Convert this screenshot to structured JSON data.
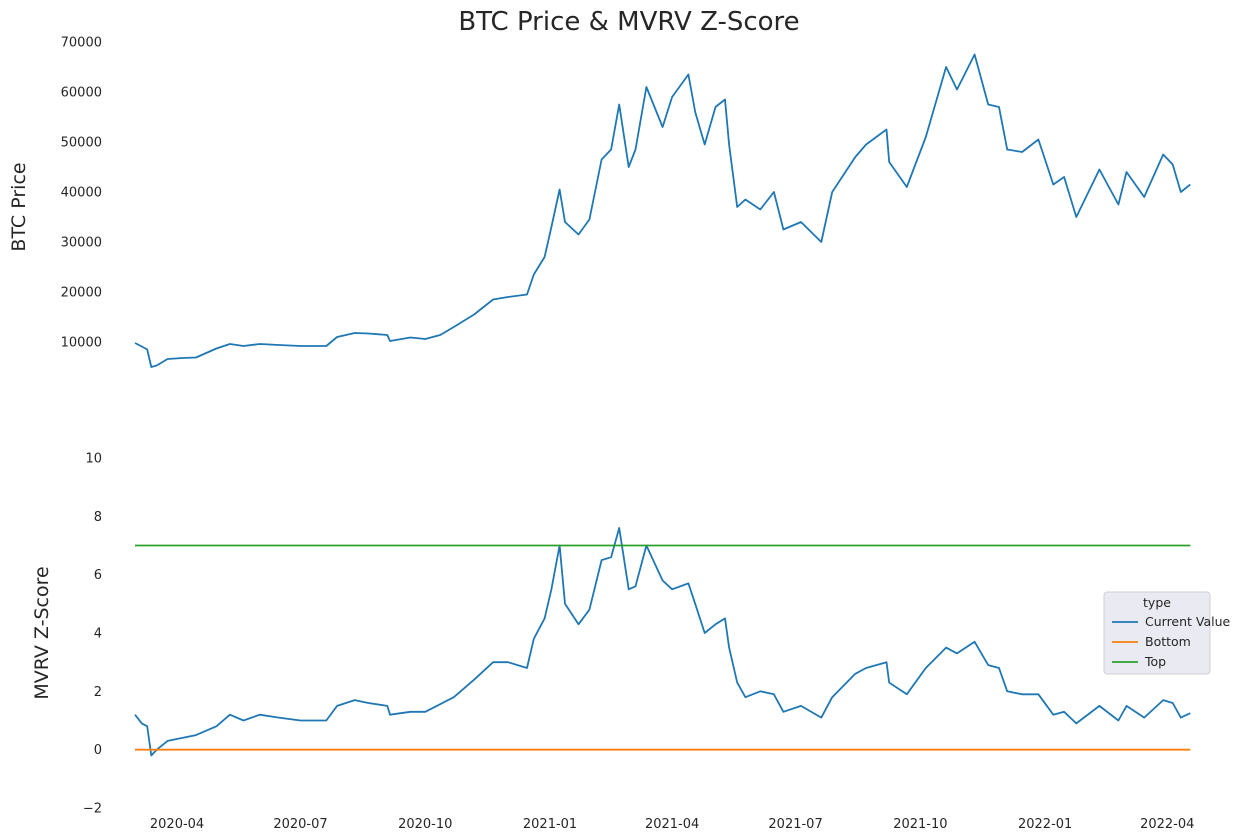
{
  "chart_data": [
    {
      "type": "line",
      "title": "BTC Price & MVRV Z-Score",
      "xlabel": "",
      "ylabel": "BTC  Price",
      "xlim": [
        "2020-03-01",
        "2022-04-20"
      ],
      "ylim": [
        4000,
        70000
      ],
      "yticks": [
        10000,
        20000,
        30000,
        40000,
        50000,
        60000,
        70000
      ],
      "xticks": [
        "2020-04",
        "2020-07",
        "2020-10",
        "2021-01",
        "2021-04",
        "2021-07",
        "2021-10",
        "2022-01",
        "2022-04"
      ],
      "grid": false,
      "series": [
        {
          "color": "#1f77b4",
          "points": [
            [
              "2020-03-01",
              9800
            ],
            [
              "2020-03-06",
              9100
            ],
            [
              "2020-03-10",
              8500
            ],
            [
              "2020-03-13",
              5000
            ],
            [
              "2020-03-17",
              5300
            ],
            [
              "2020-03-25",
              6600
            ],
            [
              "2020-04-05",
              6800
            ],
            [
              "2020-04-15",
              6900
            ],
            [
              "2020-04-30",
              8700
            ],
            [
              "2020-05-10",
              9600
            ],
            [
              "2020-05-20",
              9200
            ],
            [
              "2020-06-01",
              9600
            ],
            [
              "2020-06-15",
              9400
            ],
            [
              "2020-07-01",
              9200
            ],
            [
              "2020-07-20",
              9200
            ],
            [
              "2020-07-28",
              11000
            ],
            [
              "2020-08-10",
              11800
            ],
            [
              "2020-08-20",
              11700
            ],
            [
              "2020-09-03",
              11400
            ],
            [
              "2020-09-05",
              10200
            ],
            [
              "2020-09-20",
              10900
            ],
            [
              "2020-10-01",
              10600
            ],
            [
              "2020-10-12",
              11400
            ],
            [
              "2020-10-22",
              13000
            ],
            [
              "2020-11-06",
              15500
            ],
            [
              "2020-11-20",
              18500
            ],
            [
              "2020-12-01",
              19000
            ],
            [
              "2020-12-15",
              19500
            ],
            [
              "2020-12-20",
              23500
            ],
            [
              "2020-12-28",
              27000
            ],
            [
              "2021-01-02",
              33000
            ],
            [
              "2021-01-08",
              40500
            ],
            [
              "2021-01-12",
              34000
            ],
            [
              "2021-01-22",
              31500
            ],
            [
              "2021-01-30",
              34500
            ],
            [
              "2021-02-08",
              46500
            ],
            [
              "2021-02-15",
              48500
            ],
            [
              "2021-02-21",
              57500
            ],
            [
              "2021-02-28",
              45000
            ],
            [
              "2021-03-05",
              48500
            ],
            [
              "2021-03-13",
              61000
            ],
            [
              "2021-03-25",
              53000
            ],
            [
              "2021-04-01",
              59000
            ],
            [
              "2021-04-13",
              63500
            ],
            [
              "2021-04-18",
              56000
            ],
            [
              "2021-04-25",
              49500
            ],
            [
              "2021-05-03",
              57000
            ],
            [
              "2021-05-10",
              58500
            ],
            [
              "2021-05-13",
              49500
            ],
            [
              "2021-05-19",
              37000
            ],
            [
              "2021-05-25",
              38500
            ],
            [
              "2021-06-05",
              36500
            ],
            [
              "2021-06-15",
              40000
            ],
            [
              "2021-06-22",
              32500
            ],
            [
              "2021-07-05",
              34000
            ],
            [
              "2021-07-20",
              30000
            ],
            [
              "2021-07-28",
              40000
            ],
            [
              "2021-08-14",
              47000
            ],
            [
              "2021-08-22",
              49500
            ],
            [
              "2021-09-06",
              52500
            ],
            [
              "2021-09-08",
              46000
            ],
            [
              "2021-09-21",
              41000
            ],
            [
              "2021-10-05",
              51000
            ],
            [
              "2021-10-20",
              65000
            ],
            [
              "2021-10-28",
              60500
            ],
            [
              "2021-11-10",
              67500
            ],
            [
              "2021-11-20",
              57500
            ],
            [
              "2021-11-28",
              57000
            ],
            [
              "2021-12-04",
              48500
            ],
            [
              "2021-12-15",
              48000
            ],
            [
              "2021-12-27",
              50500
            ],
            [
              "2022-01-07",
              41500
            ],
            [
              "2022-01-15",
              43000
            ],
            [
              "2022-01-24",
              35000
            ],
            [
              "2022-02-10",
              44500
            ],
            [
              "2022-02-24",
              37500
            ],
            [
              "2022-03-02",
              44000
            ],
            [
              "2022-03-15",
              39000
            ],
            [
              "2022-03-29",
              47500
            ],
            [
              "2022-04-05",
              45500
            ],
            [
              "2022-04-11",
              40000
            ],
            [
              "2022-04-18",
              41500
            ]
          ]
        }
      ]
    },
    {
      "type": "line",
      "title": "",
      "xlabel": "",
      "ylabel": "MVRV Z-Score",
      "xlim": [
        "2020-03-01",
        "2022-04-20"
      ],
      "ylim": [
        -2,
        10
      ],
      "yticks": [
        -2,
        0,
        2,
        4,
        6,
        8,
        10
      ],
      "xticks": [
        "2020-04",
        "2020-07",
        "2020-10",
        "2021-01",
        "2021-04",
        "2021-07",
        "2021-10",
        "2022-01",
        "2022-04"
      ],
      "grid": false,
      "legend": {
        "title": "type",
        "placement": "right"
      },
      "series": [
        {
          "name": "Current Value",
          "color": "#1f77b4",
          "points": [
            [
              "2020-03-01",
              1.2
            ],
            [
              "2020-03-06",
              0.9
            ],
            [
              "2020-03-10",
              0.8
            ],
            [
              "2020-03-13",
              -0.2
            ],
            [
              "2020-03-17",
              0.0
            ],
            [
              "2020-03-25",
              0.3
            ],
            [
              "2020-04-15",
              0.5
            ],
            [
              "2020-04-30",
              0.8
            ],
            [
              "2020-05-10",
              1.2
            ],
            [
              "2020-05-20",
              1.0
            ],
            [
              "2020-06-01",
              1.2
            ],
            [
              "2020-06-15",
              1.1
            ],
            [
              "2020-07-01",
              1.0
            ],
            [
              "2020-07-20",
              1.0
            ],
            [
              "2020-07-28",
              1.5
            ],
            [
              "2020-08-10",
              1.7
            ],
            [
              "2020-08-20",
              1.6
            ],
            [
              "2020-09-03",
              1.5
            ],
            [
              "2020-09-05",
              1.2
            ],
            [
              "2020-09-20",
              1.3
            ],
            [
              "2020-10-01",
              1.3
            ],
            [
              "2020-10-22",
              1.8
            ],
            [
              "2020-11-06",
              2.4
            ],
            [
              "2020-11-20",
              3.0
            ],
            [
              "2020-12-01",
              3.0
            ],
            [
              "2020-12-15",
              2.8
            ],
            [
              "2020-12-20",
              3.8
            ],
            [
              "2020-12-28",
              4.5
            ],
            [
              "2021-01-02",
              5.5
            ],
            [
              "2021-01-08",
              7.0
            ],
            [
              "2021-01-12",
              5.0
            ],
            [
              "2021-01-22",
              4.3
            ],
            [
              "2021-01-30",
              4.8
            ],
            [
              "2021-02-08",
              6.5
            ],
            [
              "2021-02-15",
              6.6
            ],
            [
              "2021-02-21",
              7.6
            ],
            [
              "2021-02-28",
              5.5
            ],
            [
              "2021-03-05",
              5.6
            ],
            [
              "2021-03-13",
              7.0
            ],
            [
              "2021-03-25",
              5.8
            ],
            [
              "2021-04-01",
              5.5
            ],
            [
              "2021-04-13",
              5.7
            ],
            [
              "2021-04-18",
              5.0
            ],
            [
              "2021-04-25",
              4.0
            ],
            [
              "2021-05-03",
              4.3
            ],
            [
              "2021-05-10",
              4.5
            ],
            [
              "2021-05-13",
              3.5
            ],
            [
              "2021-05-19",
              2.3
            ],
            [
              "2021-05-25",
              1.8
            ],
            [
              "2021-06-05",
              2.0
            ],
            [
              "2021-06-15",
              1.9
            ],
            [
              "2021-06-22",
              1.3
            ],
            [
              "2021-07-05",
              1.5
            ],
            [
              "2021-07-20",
              1.1
            ],
            [
              "2021-07-28",
              1.8
            ],
            [
              "2021-08-14",
              2.6
            ],
            [
              "2021-08-22",
              2.8
            ],
            [
              "2021-09-06",
              3.0
            ],
            [
              "2021-09-08",
              2.3
            ],
            [
              "2021-09-21",
              1.9
            ],
            [
              "2021-10-05",
              2.8
            ],
            [
              "2021-10-20",
              3.5
            ],
            [
              "2021-10-28",
              3.3
            ],
            [
              "2021-11-10",
              3.7
            ],
            [
              "2021-11-20",
              2.9
            ],
            [
              "2021-11-28",
              2.8
            ],
            [
              "2021-12-04",
              2.0
            ],
            [
              "2021-12-15",
              1.9
            ],
            [
              "2021-12-27",
              1.9
            ],
            [
              "2022-01-07",
              1.2
            ],
            [
              "2022-01-15",
              1.3
            ],
            [
              "2022-01-24",
              0.9
            ],
            [
              "2022-02-10",
              1.5
            ],
            [
              "2022-02-24",
              1.0
            ],
            [
              "2022-03-02",
              1.5
            ],
            [
              "2022-03-15",
              1.1
            ],
            [
              "2022-03-29",
              1.7
            ],
            [
              "2022-04-05",
              1.6
            ],
            [
              "2022-04-11",
              1.1
            ],
            [
              "2022-04-18",
              1.25
            ]
          ]
        },
        {
          "name": "Bottom",
          "color": "#ff7f0e",
          "points": [
            [
              "2020-03-01",
              0
            ],
            [
              "2022-04-18",
              0
            ]
          ]
        },
        {
          "name": "Top",
          "color": "#2ca02c",
          "points": [
            [
              "2020-03-01",
              7
            ],
            [
              "2022-04-18",
              7
            ]
          ]
        }
      ]
    }
  ]
}
